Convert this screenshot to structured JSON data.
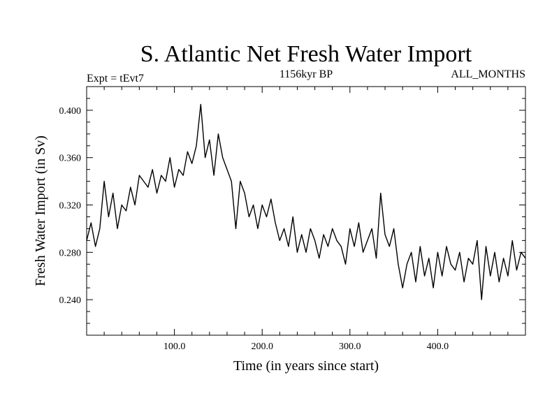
{
  "chart_data": {
    "type": "line",
    "title": "S. Atlantic Net Fresh Water Import",
    "subtitle_left": "Expt = tEvt7",
    "subtitle_center": "1156kyr BP",
    "subtitle_right": "ALL_MONTHS",
    "xlabel": "Time (in years since start)",
    "ylabel": "Fresh Water Import (in Sv)",
    "xlim": [
      0,
      500
    ],
    "ylim": [
      0.21,
      0.42
    ],
    "x_ticks": [
      100,
      200,
      300,
      400
    ],
    "x_tick_labels": [
      "100.0",
      "200.0",
      "300.0",
      "400.0"
    ],
    "y_ticks": [
      0.24,
      0.28,
      0.32,
      0.36,
      0.4
    ],
    "y_tick_labels": [
      "0.240",
      "0.280",
      "0.320",
      "0.360",
      "0.400"
    ],
    "series": [
      {
        "name": "Fresh Water Import",
        "x": [
          0,
          5,
          10,
          15,
          20,
          25,
          30,
          35,
          40,
          45,
          50,
          55,
          60,
          65,
          70,
          75,
          80,
          85,
          90,
          95,
          100,
          105,
          110,
          115,
          120,
          125,
          130,
          135,
          140,
          145,
          150,
          155,
          160,
          165,
          170,
          175,
          180,
          185,
          190,
          195,
          200,
          205,
          210,
          215,
          220,
          225,
          230,
          235,
          240,
          245,
          250,
          255,
          260,
          265,
          270,
          275,
          280,
          285,
          290,
          295,
          300,
          305,
          310,
          315,
          320,
          325,
          330,
          335,
          340,
          345,
          350,
          355,
          360,
          365,
          370,
          375,
          380,
          385,
          390,
          395,
          400,
          405,
          410,
          415,
          420,
          425,
          430,
          435,
          440,
          445,
          450,
          455,
          460,
          465,
          470,
          475,
          480,
          485,
          490,
          495,
          500
        ],
        "values": [
          0.29,
          0.305,
          0.285,
          0.3,
          0.34,
          0.31,
          0.33,
          0.3,
          0.32,
          0.315,
          0.335,
          0.32,
          0.345,
          0.34,
          0.335,
          0.35,
          0.33,
          0.345,
          0.34,
          0.36,
          0.335,
          0.35,
          0.345,
          0.365,
          0.355,
          0.37,
          0.405,
          0.36,
          0.375,
          0.345,
          0.38,
          0.36,
          0.35,
          0.34,
          0.3,
          0.34,
          0.33,
          0.31,
          0.32,
          0.3,
          0.32,
          0.31,
          0.325,
          0.305,
          0.29,
          0.3,
          0.285,
          0.31,
          0.28,
          0.295,
          0.28,
          0.3,
          0.29,
          0.275,
          0.295,
          0.285,
          0.3,
          0.29,
          0.285,
          0.27,
          0.3,
          0.285,
          0.305,
          0.28,
          0.29,
          0.3,
          0.275,
          0.33,
          0.295,
          0.285,
          0.3,
          0.27,
          0.25,
          0.27,
          0.28,
          0.255,
          0.285,
          0.26,
          0.275,
          0.25,
          0.28,
          0.26,
          0.285,
          0.27,
          0.265,
          0.28,
          0.255,
          0.275,
          0.27,
          0.29,
          0.24,
          0.285,
          0.26,
          0.28,
          0.255,
          0.275,
          0.26,
          0.29,
          0.265,
          0.28,
          0.275
        ]
      }
    ]
  }
}
